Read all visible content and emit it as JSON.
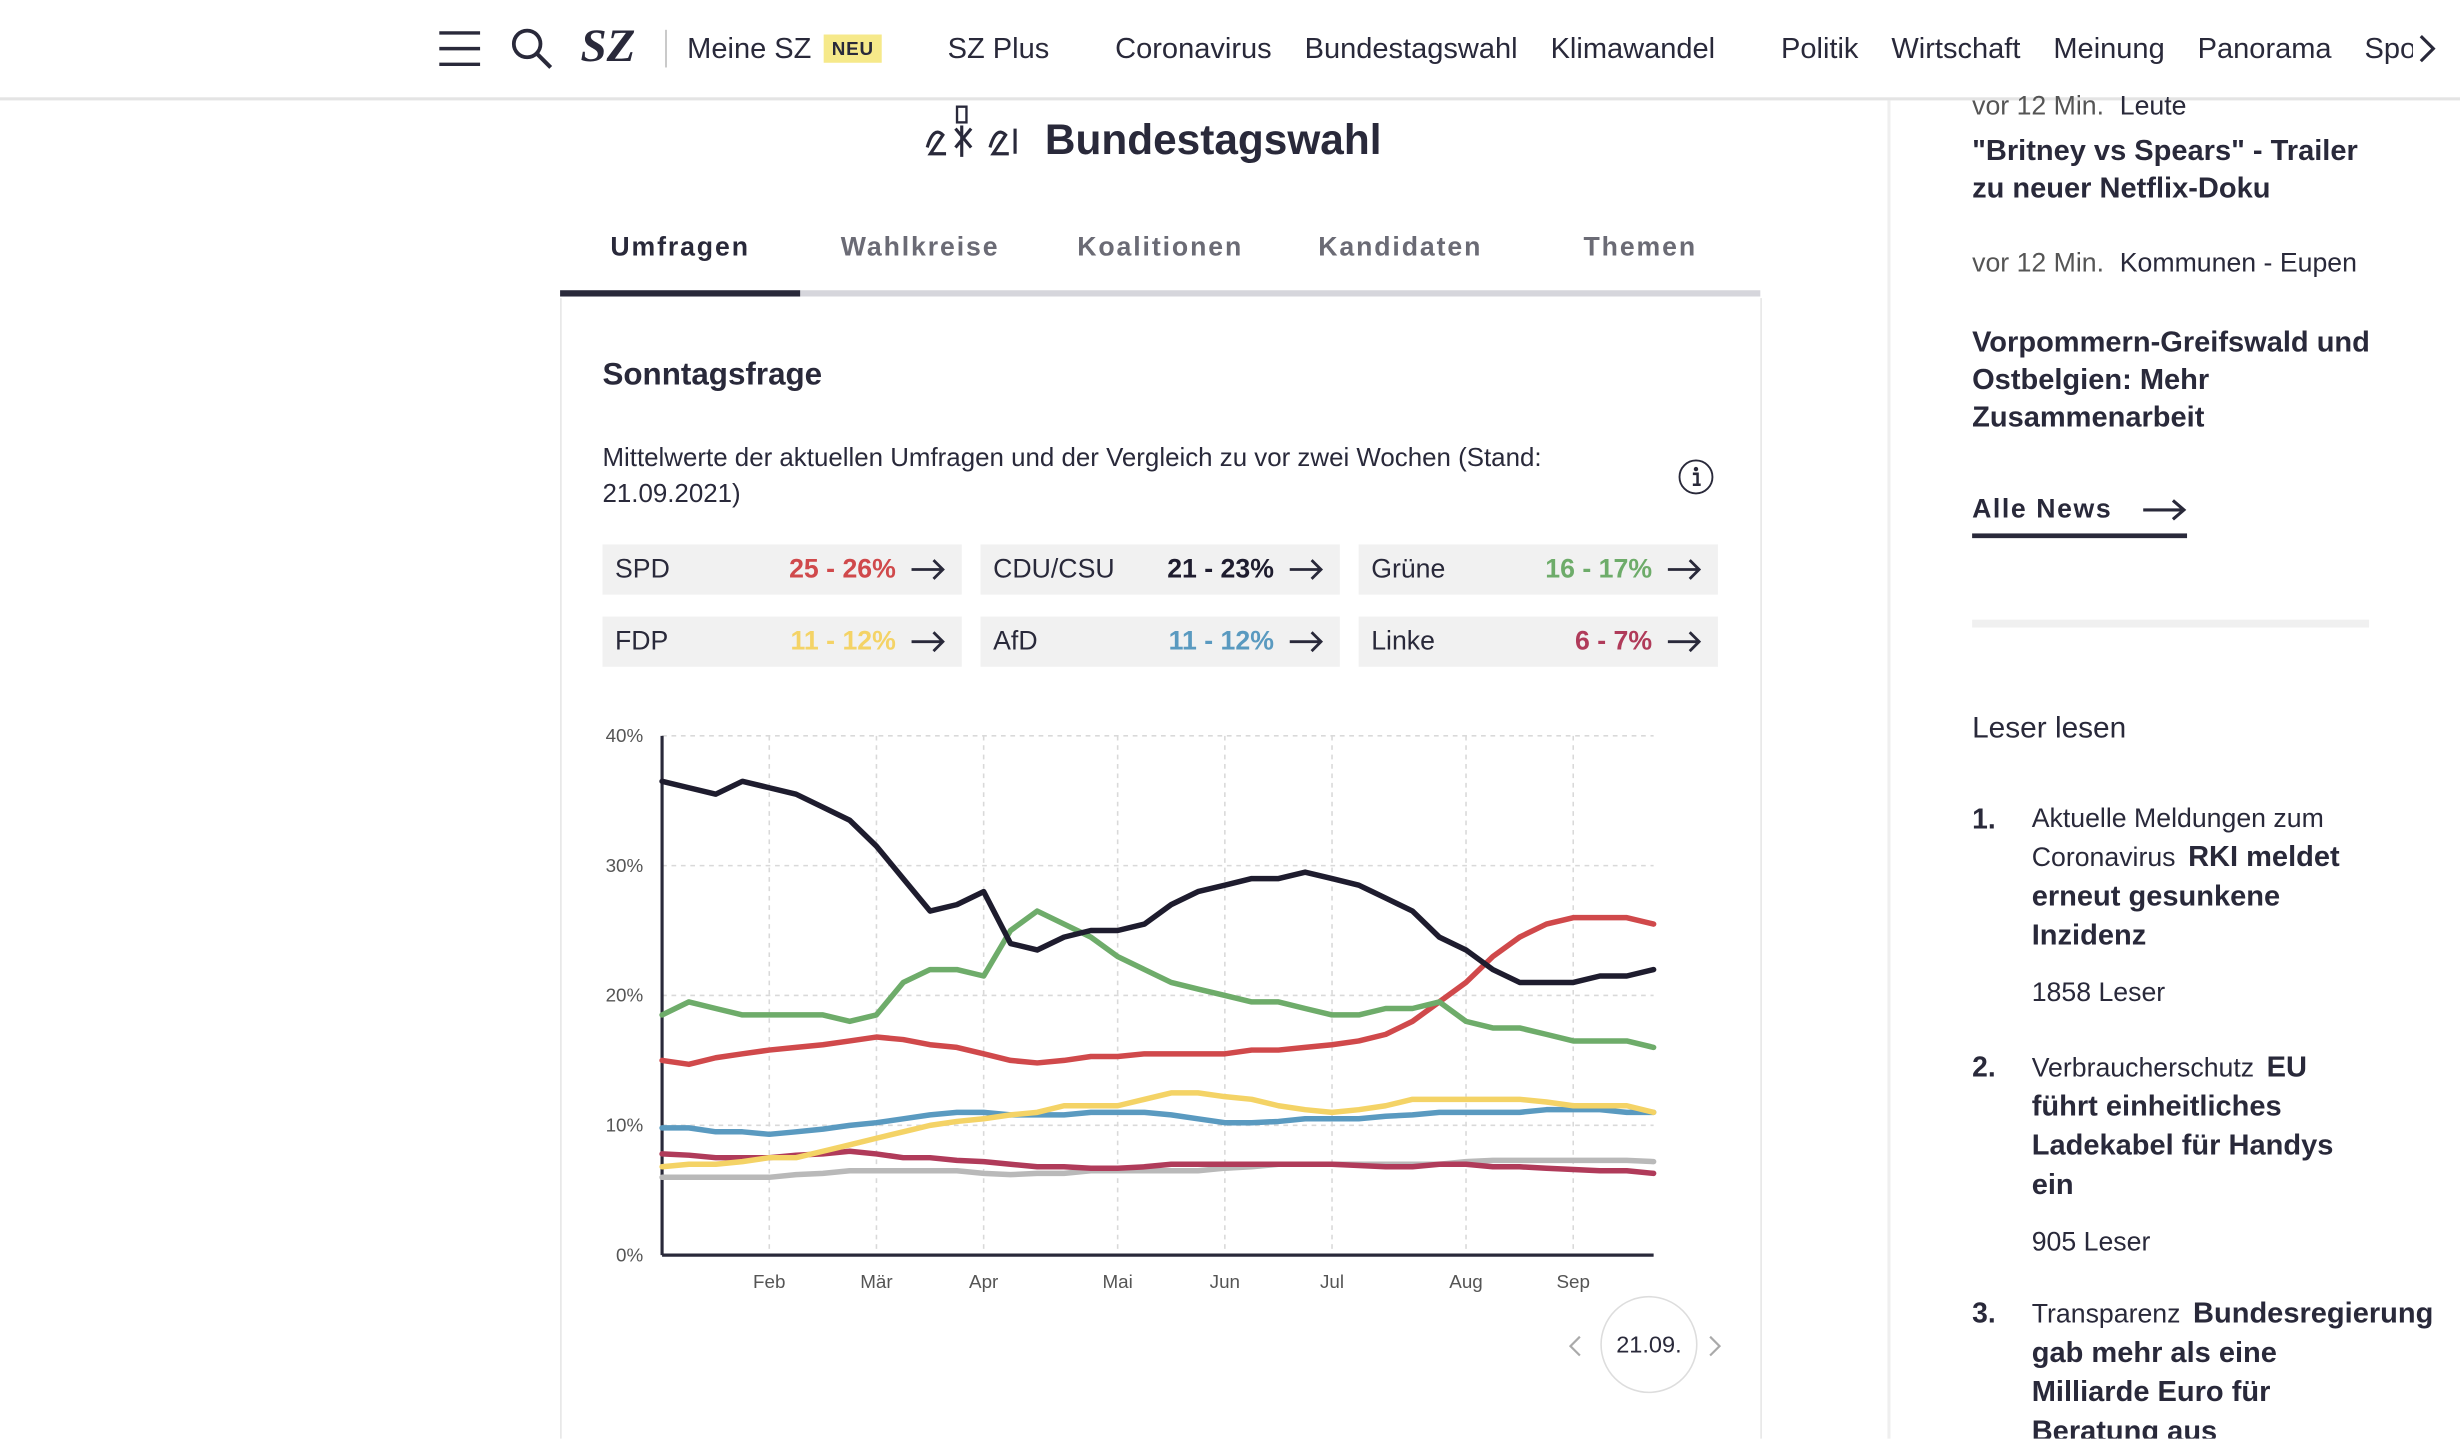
{
  "nav": {
    "logo": "SZ",
    "badge": "NEU",
    "items": [
      "Meine SZ",
      "SZ Plus",
      "Coronavirus",
      "Bundestagswahl",
      "Klimawandel",
      "Politik",
      "Wirtschaft",
      "Meinung",
      "Panorama",
      "Sport"
    ]
  },
  "header": {
    "title": "Bundestagswahl"
  },
  "tabs": [
    "Umfragen",
    "Wahlkreise",
    "Koalitionen",
    "Kandidaten",
    "Themen"
  ],
  "card": {
    "title": "Sonntagsfrage",
    "subtitle": "Mittelwerte der aktuellen Umfragen und der Vergleich zu vor zwei Wochen (Stand: 21.09.2021)",
    "summary": [
      {
        "range": "25 - 26%"
      },
      {
        "range": "21 - 23%"
      },
      {
        "range": "16 - 17%"
      },
      {
        "range": "11 - 12%"
      },
      {
        "range": "11 - 12%"
      },
      {
        "range": "6 - 7%"
      }
    ],
    "date": "21.09."
  },
  "chart_data": {
    "type": "line",
    "categories": [
      null,
      null,
      null,
      null,
      "Feb",
      null,
      null,
      null,
      "Mär",
      null,
      null,
      null,
      "Apr",
      null,
      null,
      null,
      null,
      "Mai",
      null,
      null,
      null,
      "Jun",
      null,
      null,
      null,
      "Jul",
      null,
      null,
      null,
      null,
      "Aug",
      null,
      null,
      null,
      "Sep",
      null,
      null,
      null
    ],
    "ylim": [
      0,
      40
    ],
    "yticks": [
      {
        "value": 0,
        "label": "0%"
      },
      {
        "value": 10,
        "label": "10%"
      },
      {
        "value": 20,
        "label": "20%"
      },
      {
        "value": 30,
        "label": "30%"
      },
      {
        "value": 40,
        "label": "40%"
      }
    ],
    "grid": true,
    "series": [
      {
        "name": "SPD",
        "color": "#d0494b",
        "values": [
          15,
          14.7,
          15.2,
          15.5,
          15.8,
          16,
          16.2,
          16.5,
          16.8,
          16.6,
          16.2,
          16,
          15.5,
          15,
          14.8,
          15,
          15.3,
          15.3,
          15.5,
          15.5,
          15.5,
          15.5,
          15.8,
          15.8,
          16,
          16.2,
          16.5,
          17,
          18,
          19.5,
          21,
          23,
          24.5,
          25.5,
          26,
          26,
          26,
          25.5
        ]
      },
      {
        "name": "CDU/CSU",
        "color": "#1e1c2e",
        "values": [
          36.5,
          36,
          35.5,
          36.5,
          36,
          35.5,
          34.5,
          33.5,
          31.5,
          29,
          26.5,
          27,
          28,
          24,
          23.5,
          24.5,
          25,
          25,
          25.5,
          27,
          28,
          28.5,
          29,
          29,
          29.5,
          29,
          28.5,
          27.5,
          26.5,
          24.5,
          23.5,
          22,
          21,
          21,
          21,
          21.5,
          21.5,
          22
        ]
      },
      {
        "name": "Grüne",
        "color": "#6eac6a",
        "values": [
          18.5,
          19.5,
          19,
          18.5,
          18.5,
          18.5,
          18.5,
          18,
          18.5,
          21,
          22,
          22,
          21.5,
          25,
          26.5,
          25.5,
          24.5,
          23,
          22,
          21,
          20.5,
          20,
          19.5,
          19.5,
          19,
          18.5,
          18.5,
          19,
          19,
          19.5,
          18,
          17.5,
          17.5,
          17,
          16.5,
          16.5,
          16.5,
          16
        ]
      },
      {
        "name": "FDP",
        "color": "#f4d366",
        "values": [
          6.8,
          7,
          7,
          7.2,
          7.5,
          7.5,
          8,
          8.5,
          9,
          9.5,
          10,
          10.3,
          10.5,
          10.8,
          11,
          11.5,
          11.5,
          11.5,
          12,
          12.5,
          12.5,
          12.2,
          12,
          11.5,
          11.2,
          11,
          11.2,
          11.5,
          12,
          12,
          12,
          12,
          12,
          11.8,
          11.5,
          11.5,
          11.5,
          11
        ]
      },
      {
        "name": "AfD",
        "color": "#5a9ac0",
        "values": [
          9.8,
          9.8,
          9.5,
          9.5,
          9.3,
          9.5,
          9.7,
          10,
          10.2,
          10.5,
          10.8,
          11,
          11,
          10.8,
          10.8,
          10.8,
          11,
          11,
          11,
          10.8,
          10.5,
          10.2,
          10.2,
          10.3,
          10.5,
          10.5,
          10.5,
          10.7,
          10.8,
          11,
          11,
          11,
          11,
          11.2,
          11.2,
          11.2,
          11,
          11
        ]
      },
      {
        "name": "Linke",
        "color": "#b03b5a",
        "values": [
          7.8,
          7.7,
          7.5,
          7.5,
          7.5,
          7.7,
          7.8,
          8,
          7.8,
          7.5,
          7.5,
          7.3,
          7.2,
          7,
          6.8,
          6.8,
          6.7,
          6.7,
          6.8,
          7,
          7,
          7,
          7,
          7,
          7,
          7,
          6.9,
          6.8,
          6.8,
          7,
          7,
          6.8,
          6.8,
          6.7,
          6.6,
          6.5,
          6.5,
          6.3
        ]
      },
      {
        "color": "#b9b9b9",
        "values": [
          6,
          6,
          6,
          6,
          6,
          6.2,
          6.3,
          6.5,
          6.5,
          6.5,
          6.5,
          6.5,
          6.3,
          6.2,
          6.3,
          6.3,
          6.5,
          6.5,
          6.5,
          6.5,
          6.5,
          6.7,
          6.8,
          7,
          7,
          7,
          7,
          7,
          7,
          7,
          7.2,
          7.3,
          7.3,
          7.3,
          7.3,
          7.3,
          7.3,
          7.2
        ]
      }
    ]
  },
  "sidebar": {
    "news": [
      {
        "time": "vor 12 Min.",
        "topic": "Leute",
        "headline": "\"Britney vs Spears\" - Trailer zu neuer Netflix-Doku"
      },
      {
        "time": "vor 12 Min.",
        "topic": "Kommunen - Eupen",
        "headline": "Vorpommern-Greifswald und Ostbelgien: Mehr Zusammenarbeit"
      }
    ],
    "all_news": "Alle News",
    "popular_title": "Leser lesen",
    "popular": [
      {
        "rank": "1.",
        "topic": "Aktuelle Meldungen zum Coronavirus",
        "headline": "RKI meldet erneut gesunkene Inzidenz",
        "readers": "1858 Leser"
      },
      {
        "rank": "2.",
        "topic": "Verbraucherschutz",
        "headline": "EU führt einheitliches Ladekabel für Handys ein",
        "readers": "905 Leser"
      },
      {
        "rank": "3.",
        "topic": "Transparenz",
        "headline": "Bundesregierung gab mehr als eine Milliarde Euro für Beratung aus"
      }
    ]
  }
}
